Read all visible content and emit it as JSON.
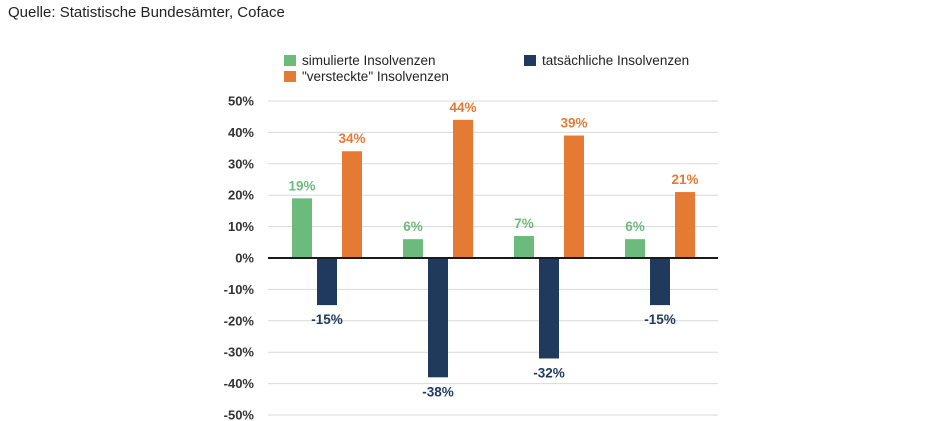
{
  "header": {
    "source_line": "Quelle: Statistische Bundesämter, Coface"
  },
  "chart_data": {
    "type": "bar",
    "title": "",
    "xlabel": "",
    "ylabel": "",
    "categories": [
      "",
      "",
      "",
      ""
    ],
    "ylim": [
      -50,
      50
    ],
    "yticks": [
      50,
      40,
      30,
      20,
      10,
      0,
      -10,
      -20,
      -30,
      -40,
      -50
    ],
    "ytick_labels": [
      "50%",
      "40%",
      "30%",
      "20%",
      "10%",
      "0%",
      "-10%",
      "-20%",
      "-30%",
      "-40%",
      "-50%"
    ],
    "grid": true,
    "legend_position": "top",
    "series": [
      {
        "name": "simulierte Insolvenzen",
        "color": "#6dbb7c",
        "values": [
          19,
          6,
          7,
          6
        ],
        "labels": [
          "19%",
          "6%",
          "7%",
          "6%"
        ]
      },
      {
        "name": "tatsächliche Insolvenzen",
        "color": "#1f3a5c",
        "values": [
          -15,
          -38,
          -32,
          -15
        ],
        "labels": [
          "-15%",
          "-38%",
          "-32%",
          "-15%"
        ]
      },
      {
        "name": "\"versteckte\" Insolvenzen",
        "color": "#e57a35",
        "values": [
          34,
          44,
          39,
          21
        ],
        "labels": [
          "34%",
          "44%",
          "39%",
          "21%"
        ]
      }
    ]
  }
}
